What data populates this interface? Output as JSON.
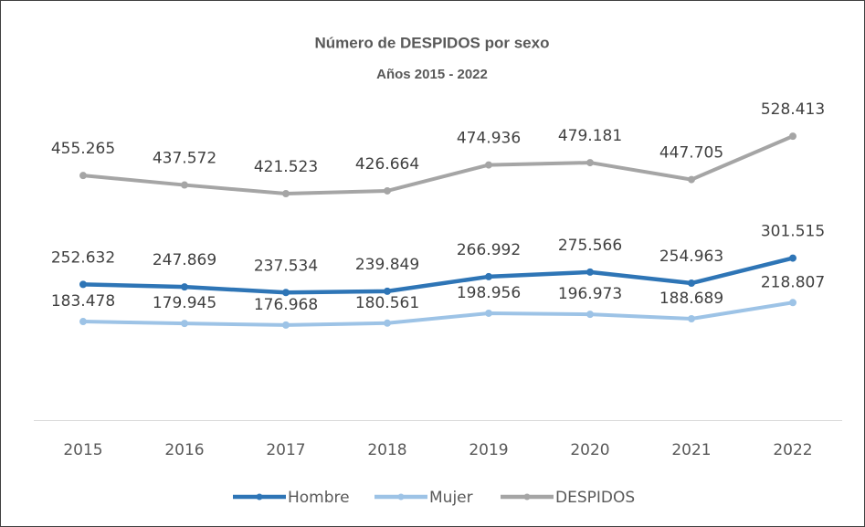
{
  "chart_data": {
    "type": "line",
    "title": "Número de DESPIDOS  por sexo",
    "subtitle": "Años 2015 - 2022",
    "categories": [
      "2015",
      "2016",
      "2017",
      "2018",
      "2019",
      "2020",
      "2021",
      "2022"
    ],
    "ylim": [
      0,
      600000
    ],
    "series": [
      {
        "name": "Hombre",
        "color": "#2e75b6",
        "values": [
          252632,
          247869,
          237534,
          239849,
          266992,
          275566,
          254963,
          301515
        ],
        "value_labels": [
          "252.632",
          "247.869",
          "237.534",
          "239.849",
          "266.992",
          "275.566",
          "254.963",
          "301.515"
        ]
      },
      {
        "name": "Mujer",
        "color": "#9dc3e6",
        "values": [
          183478,
          179945,
          176968,
          180561,
          198956,
          196973,
          188689,
          218807
        ],
        "value_labels": [
          "183.478",
          "179.945",
          "176.968",
          "180.561",
          "198.956",
          "196.973",
          "188.689",
          "218.807"
        ]
      },
      {
        "name": "DESPIDOS",
        "color": "#a5a5a5",
        "values": [
          455265,
          437572,
          421523,
          426664,
          474936,
          479181,
          447705,
          528413
        ],
        "value_labels": [
          "455.265",
          "437.572",
          "421.523",
          "426.664",
          "474.936",
          "479.181",
          "447.705",
          "528.413"
        ]
      }
    ]
  }
}
